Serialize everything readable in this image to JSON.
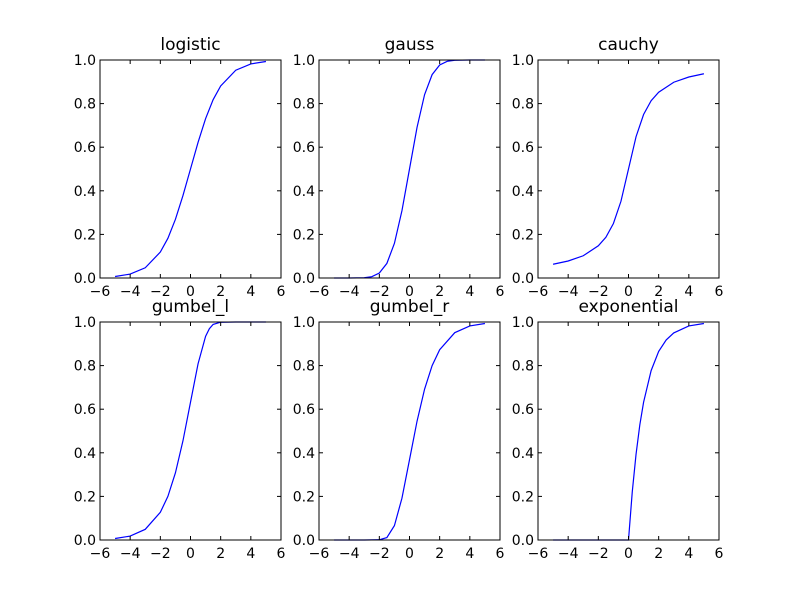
{
  "figure": {
    "background": "#ffffff",
    "line_color": "#0000ff"
  },
  "chart_data": [
    {
      "type": "line",
      "title": "logistic",
      "xlim": [
        -6,
        6
      ],
      "ylim": [
        0,
        1.0
      ],
      "xticks": [
        -6,
        -4,
        -2,
        0,
        2,
        4,
        6
      ],
      "xtick_labels": [
        "−6",
        "−4",
        "−2",
        "0",
        "2",
        "4",
        "6"
      ],
      "yticks": [
        0,
        0.2,
        0.4,
        0.6,
        0.8,
        1.0
      ],
      "ytick_labels": [
        "0.0",
        "0.2",
        "0.4",
        "0.6",
        "0.8",
        "1.0"
      ],
      "series": [
        {
          "x": [
            -5,
            -4,
            -3,
            -2,
            -1.5,
            -1,
            -0.5,
            0,
            0.5,
            1,
            1.5,
            2,
            3,
            4,
            5
          ],
          "y": [
            0.007,
            0.018,
            0.047,
            0.119,
            0.182,
            0.269,
            0.378,
            0.5,
            0.622,
            0.731,
            0.818,
            0.881,
            0.953,
            0.982,
            0.993
          ]
        }
      ]
    },
    {
      "type": "line",
      "title": "gauss",
      "xlim": [
        -6,
        6
      ],
      "ylim": [
        0,
        1.0
      ],
      "xticks": [
        -6,
        -4,
        -2,
        0,
        2,
        4,
        6
      ],
      "xtick_labels": [
        "−6",
        "−4",
        "−2",
        "0",
        "2",
        "4",
        "6"
      ],
      "yticks": [
        0,
        0.2,
        0.4,
        0.6,
        0.8,
        1.0
      ],
      "ytick_labels": [
        "0.0",
        "0.2",
        "0.4",
        "0.6",
        "0.8",
        "1.0"
      ],
      "series": [
        {
          "x": [
            -5,
            -4,
            -3,
            -2.5,
            -2,
            -1.5,
            -1,
            -0.5,
            0,
            0.5,
            1,
            1.5,
            2,
            2.5,
            3,
            4,
            5
          ],
          "y": [
            0.0,
            0.0,
            0.001,
            0.006,
            0.023,
            0.067,
            0.159,
            0.309,
            0.5,
            0.691,
            0.841,
            0.933,
            0.977,
            0.994,
            0.999,
            1.0,
            1.0
          ]
        }
      ]
    },
    {
      "type": "line",
      "title": "cauchy",
      "xlim": [
        -6,
        6
      ],
      "ylim": [
        0,
        1.0
      ],
      "xticks": [
        -6,
        -4,
        -2,
        0,
        2,
        4,
        6
      ],
      "xtick_labels": [
        "−6",
        "−4",
        "−2",
        "0",
        "2",
        "4",
        "6"
      ],
      "yticks": [
        0,
        0.2,
        0.4,
        0.6,
        0.8,
        1.0
      ],
      "ytick_labels": [
        "0.0",
        "0.2",
        "0.4",
        "0.6",
        "0.8",
        "1.0"
      ],
      "series": [
        {
          "x": [
            -5,
            -4,
            -3,
            -2,
            -1.5,
            -1,
            -0.5,
            0,
            0.5,
            1,
            1.5,
            2,
            3,
            4,
            5
          ],
          "y": [
            0.063,
            0.078,
            0.102,
            0.148,
            0.187,
            0.25,
            0.352,
            0.5,
            0.648,
            0.75,
            0.813,
            0.852,
            0.898,
            0.922,
            0.937
          ]
        }
      ]
    },
    {
      "type": "line",
      "title": "gumbel_l",
      "xlim": [
        -6,
        6
      ],
      "ylim": [
        0,
        1.0
      ],
      "xticks": [
        -6,
        -4,
        -2,
        0,
        2,
        4,
        6
      ],
      "xtick_labels": [
        "−6",
        "−4",
        "−2",
        "0",
        "2",
        "4",
        "6"
      ],
      "yticks": [
        0,
        0.2,
        0.4,
        0.6,
        0.8,
        1.0
      ],
      "ytick_labels": [
        "0.0",
        "0.2",
        "0.4",
        "0.6",
        "0.8",
        "1.0"
      ],
      "series": [
        {
          "x": [
            -5,
            -4,
            -3,
            -2,
            -1.5,
            -1,
            -0.5,
            0,
            0.5,
            1,
            1.25,
            1.5,
            2,
            3,
            4,
            5
          ],
          "y": [
            0.007,
            0.018,
            0.049,
            0.127,
            0.2,
            0.308,
            0.455,
            0.632,
            0.808,
            0.934,
            0.969,
            0.989,
            0.999,
            1.0,
            1.0,
            1.0
          ]
        }
      ]
    },
    {
      "type": "line",
      "title": "gumbel_r",
      "xlim": [
        -6,
        6
      ],
      "ylim": [
        0,
        1.0
      ],
      "xticks": [
        -6,
        -4,
        -2,
        0,
        2,
        4,
        6
      ],
      "xtick_labels": [
        "−6",
        "−4",
        "−2",
        "0",
        "2",
        "4",
        "6"
      ],
      "yticks": [
        0,
        0.2,
        0.4,
        0.6,
        0.8,
        1.0
      ],
      "ytick_labels": [
        "0.0",
        "0.2",
        "0.4",
        "0.6",
        "0.8",
        "1.0"
      ],
      "series": [
        {
          "x": [
            -5,
            -3,
            -2,
            -1.5,
            -1,
            -0.5,
            0,
            0.5,
            1,
            1.5,
            2,
            3,
            4,
            5
          ],
          "y": [
            0.0,
            0.0,
            0.001,
            0.011,
            0.066,
            0.192,
            0.368,
            0.545,
            0.692,
            0.8,
            0.873,
            0.951,
            0.982,
            0.993
          ]
        }
      ]
    },
    {
      "type": "line",
      "title": "exponential",
      "xlim": [
        -6,
        6
      ],
      "ylim": [
        0,
        1.0
      ],
      "xticks": [
        -6,
        -4,
        -2,
        0,
        2,
        4,
        6
      ],
      "xtick_labels": [
        "−6",
        "−4",
        "−2",
        "0",
        "2",
        "4",
        "6"
      ],
      "yticks": [
        0,
        0.2,
        0.4,
        0.6,
        0.8,
        1.0
      ],
      "ytick_labels": [
        "0.0",
        "0.2",
        "0.4",
        "0.6",
        "0.8",
        "1.0"
      ],
      "series": [
        {
          "x": [
            -5,
            0,
            0.25,
            0.5,
            0.75,
            1,
            1.5,
            2,
            2.5,
            3,
            4,
            5
          ],
          "y": [
            0.0,
            0.0,
            0.221,
            0.393,
            0.528,
            0.632,
            0.777,
            0.865,
            0.918,
            0.95,
            0.982,
            0.993
          ]
        }
      ]
    }
  ]
}
